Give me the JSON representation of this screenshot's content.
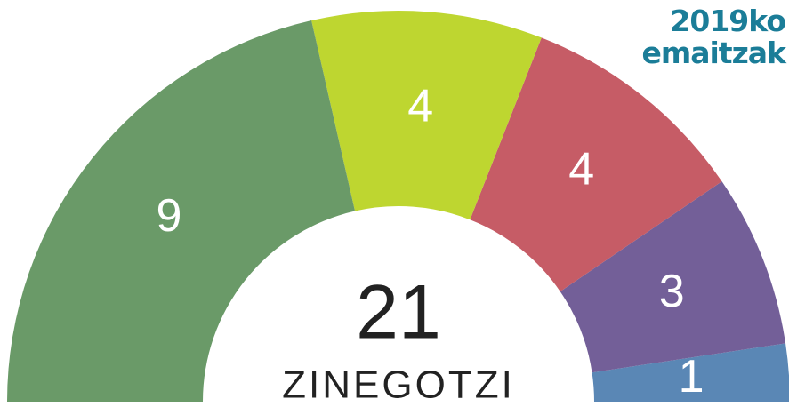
{
  "chart_data": {
    "type": "semicircle",
    "title": "2019ko emaitzak",
    "values": [
      9,
      4,
      4,
      3,
      1
    ],
    "colors": [
      "#6a9a68",
      "#bed630",
      "#c65c66",
      "#735f98",
      "#5a87b5"
    ],
    "total": 21,
    "center_label": "ZINEGOTZI"
  }
}
